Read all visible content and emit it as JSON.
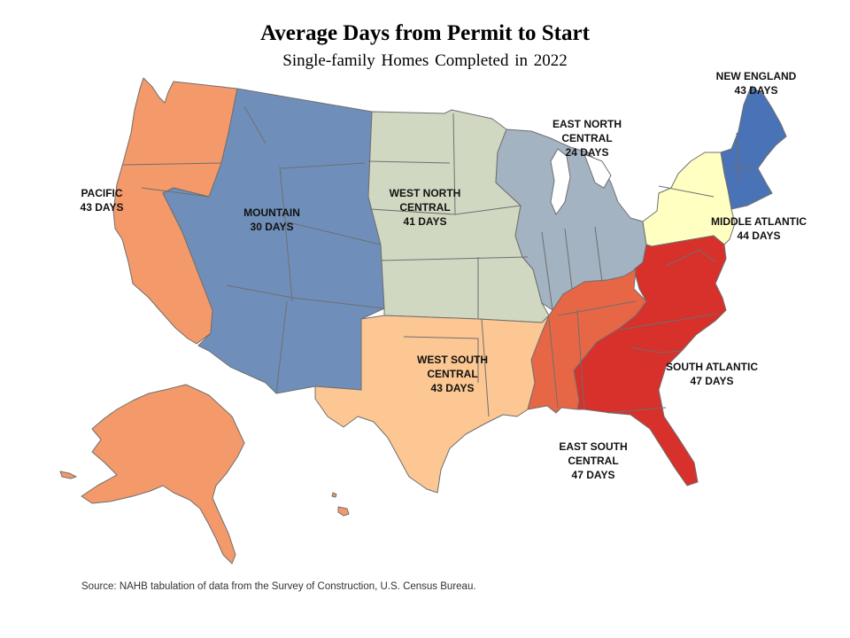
{
  "title": "Average Days from Permit to Start",
  "subtitle": "Single-family Homes Completed in 2022",
  "source": "Source: NAHB tabulation of data from the Survey of Construction, U.S. Census Bureau.",
  "regions": {
    "pacific": {
      "name": "PACIFIC",
      "value": "43 DAYS",
      "days": 43,
      "color": "#f4996a"
    },
    "mountain": {
      "name": "MOUNTAIN",
      "value": "30 DAYS",
      "days": 30,
      "color": "#6f8fba"
    },
    "west_north_central": {
      "name_line1": "WEST NORTH",
      "name_line2": "CENTRAL",
      "value": "41 DAYS",
      "days": 41,
      "color": "#d1d8c2"
    },
    "east_north_central": {
      "name_line1": "EAST NORTH",
      "name_line2": "CENTRAL",
      "value": "24 DAYS",
      "days": 24,
      "color": "#a3b3c2"
    },
    "new_england": {
      "name": "NEW ENGLAND",
      "value": "43 DAYS",
      "days": 43,
      "color": "#4a72b6"
    },
    "middle_atlantic": {
      "name": "MIDDLE ATLANTIC",
      "value": "44 DAYS",
      "days": 44,
      "color": "#ffffc2"
    },
    "south_atlantic": {
      "name": "SOUTH ATLANTIC",
      "value": "47 DAYS",
      "days": 47,
      "color": "#d8302a"
    },
    "east_south_central": {
      "name_line1": "EAST SOUTH",
      "name_line2": "CENTRAL",
      "value": "47 DAYS",
      "days": 47,
      "color": "#e76645"
    },
    "west_south_central": {
      "name_line1": "WEST SOUTH",
      "name_line2": "CENTRAL",
      "value": "43 DAYS",
      "days": 43,
      "color": "#fcc793"
    }
  }
}
